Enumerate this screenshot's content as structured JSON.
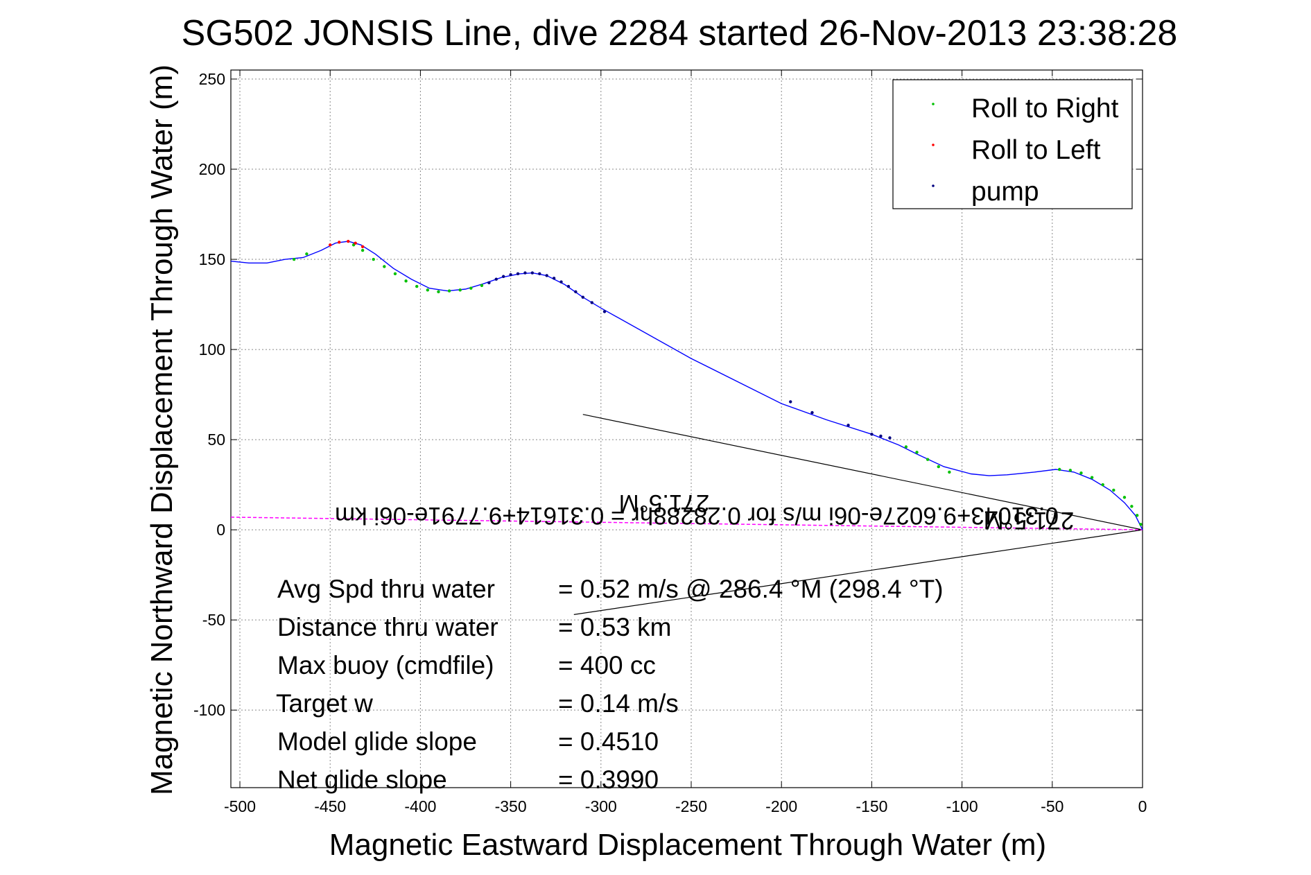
{
  "chart_data": {
    "type": "line",
    "title": "SG502 JONSIS Line, dive 2284 started 26-Nov-2013 23:38:28",
    "xlabel": "Magnetic Eastward Displacement Through Water (m)",
    "ylabel": "Magnetic Northward Displacement Through Water (m)",
    "xlim": [
      -505,
      0
    ],
    "ylim": [
      -143,
      255
    ],
    "xticks": [
      -500,
      -450,
      -400,
      -350,
      -300,
      -250,
      -200,
      -150,
      -100,
      -50,
      0
    ],
    "yticks": [
      -100,
      -50,
      0,
      50,
      100,
      150,
      200,
      250
    ],
    "grid": true,
    "legend_position": "top-right",
    "colors": {
      "track": "#0000ff",
      "roll_right": "#00c000",
      "roll_left": "#ff0000",
      "pump": "#000080",
      "current_line": "#ff00ff",
      "heading_lines": "#000000"
    },
    "series": [
      {
        "name": "Roll to Right",
        "color": "#00c000",
        "x": [
          -470,
          -463,
          -437,
          -432,
          -426,
          -420,
          -414,
          -408,
          -402,
          -396,
          -390,
          -384,
          -378,
          -372,
          -366,
          -131,
          -125,
          -119,
          -113,
          -107,
          -46,
          -40,
          -34,
          -28,
          -22,
          -16,
          -10,
          -6,
          -3,
          -1
        ],
        "y": [
          150,
          153,
          158,
          155,
          150,
          146,
          142,
          138,
          135,
          133,
          132,
          132.5,
          133,
          134,
          135.5,
          46,
          43,
          39,
          35,
          32,
          33.5,
          33,
          31.5,
          29,
          25,
          22,
          18,
          13,
          8,
          3
        ]
      },
      {
        "name": "Roll to Left",
        "color": "#ff0000",
        "x": [
          -450,
          -445,
          -440,
          -436,
          -432
        ],
        "y": [
          158,
          159.5,
          160,
          159,
          157
        ]
      },
      {
        "name": "pump",
        "color": "#000080",
        "x": [
          -362,
          -358,
          -354,
          -350,
          -346,
          -342,
          -338,
          -334,
          -330,
          -326,
          -322,
          -318,
          -314,
          -310,
          -305,
          -298,
          -195,
          -183,
          -163,
          -150,
          -145,
          -140
        ],
        "y": [
          137,
          139,
          140.5,
          141.5,
          142,
          142.5,
          142.5,
          142,
          141,
          139.5,
          137.5,
          135,
          132,
          129,
          126,
          121,
          71,
          65,
          58,
          53,
          52,
          51
        ]
      }
    ],
    "track": {
      "name": "track",
      "x": [
        -505,
        -495,
        -485,
        -475,
        -465,
        -455,
        -447,
        -440,
        -433,
        -425,
        -415,
        -405,
        -395,
        -385,
        -375,
        -365,
        -355,
        -345,
        -338,
        -330,
        -320,
        -310,
        -300,
        -250,
        -200,
        -175,
        -150,
        -135,
        -125,
        -110,
        -95,
        -85,
        -75,
        -60,
        -48,
        -38,
        -28,
        -18,
        -10,
        -4,
        0
      ],
      "y": [
        149,
        148,
        148,
        150,
        151,
        155,
        159,
        160,
        158,
        153,
        145,
        139,
        134,
        132.5,
        133.5,
        136.5,
        140,
        142,
        142.5,
        141,
        136,
        129,
        123,
        95,
        70,
        61,
        53,
        47,
        42,
        35,
        31,
        30,
        30.5,
        32,
        33.5,
        32,
        28,
        22,
        15,
        8,
        0
      ]
    },
    "current_line": {
      "x": [
        -505,
        0
      ],
      "y": [
        7,
        0
      ]
    },
    "heading_lines": [
      {
        "x": [
          -310,
          0
        ],
        "y": [
          64,
          0
        ]
      },
      {
        "x": [
          -315,
          0
        ],
        "y": [
          -47,
          0
        ]
      }
    ],
    "rotated_annotations": [
      {
        "text": "0.31043+9.6027e-06i m/s for 0.28288hr = 0.31614+9.7791e-06i km"
      },
      {
        "text": "271.5°M"
      },
      {
        "text": "271.5°M"
      }
    ],
    "stats": [
      {
        "label": "Avg Spd thru water",
        "value": "=  0.52 m/s @ 286.4 °M (298.4 °T)"
      },
      {
        "label": "Distance thru water",
        "value": "=  0.53 km"
      },
      {
        "label": "Max buoy (cmdfile)",
        "value": "= 400 cc"
      },
      {
        "label": "Target w",
        "value": "= 0.14 m/s"
      },
      {
        "label": "Model glide slope",
        "value": "= 0.4510"
      },
      {
        "label": "Net glide slope",
        "value": "= 0.3990"
      }
    ]
  }
}
